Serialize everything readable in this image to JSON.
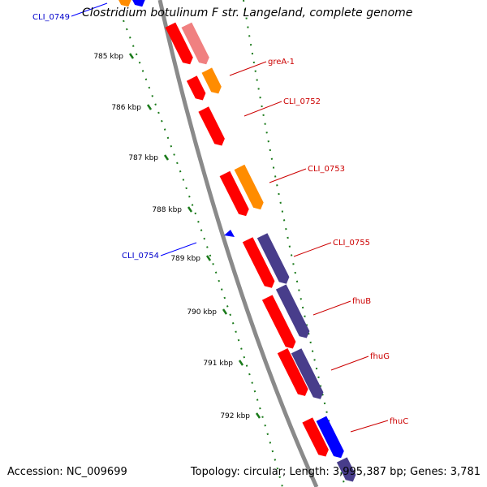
{
  "title": "Clostridium botulinum F str. Langeland, complete genome",
  "footer": {
    "accession": "Accession: NC_009699",
    "topology": "Topology: circular; Length: 3,995,387 bp; Genes: 3,781"
  },
  "colors": {
    "backbone": "#808080",
    "tick": "#1a7a1a",
    "cds": "#ff0000",
    "forward_gene": "#0000ff",
    "reverse_label": "#cc0000",
    "trna": "#ff8c00",
    "purple": "#483d8b",
    "pink": "#f08080"
  },
  "ticks": [
    "785 kbp",
    "786 kbp",
    "787 kbp",
    "788 kbp",
    "789 kbp",
    "790 kbp",
    "791 kbp",
    "792 kbp"
  ],
  "labels": {
    "forward": [
      "CLI_0749",
      "CLI_0754"
    ],
    "reverse": [
      "greA-1",
      "CLI_0752",
      "CLI_0753",
      "CLI_0755",
      "fhuB",
      "fhuG",
      "fhuC"
    ]
  }
}
